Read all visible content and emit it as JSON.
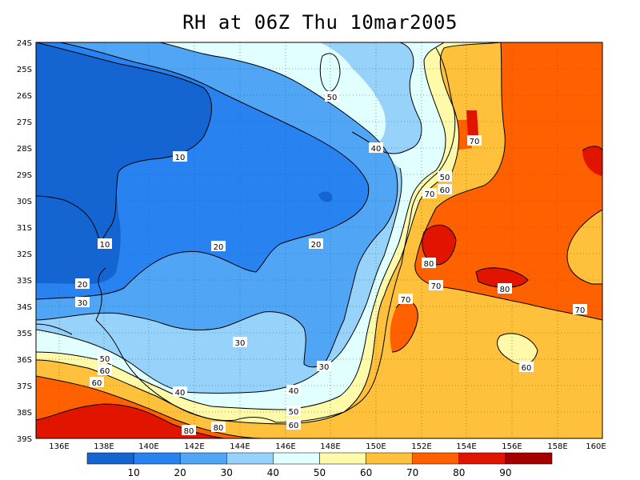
{
  "title": "RH at 06Z Thu 10mar2005",
  "y_ticks": [
    "24S",
    "25S",
    "26S",
    "27S",
    "28S",
    "29S",
    "30S",
    "31S",
    "32S",
    "33S",
    "34S",
    "35S",
    "36S",
    "37S",
    "38S",
    "39S"
  ],
  "x_ticks": [
    "136E",
    "138E",
    "140E",
    "142E",
    "144E",
    "146E",
    "148E",
    "150E",
    "152E",
    "154E",
    "156E",
    "158E",
    "160E"
  ],
  "contour_labels": [
    "10",
    "10",
    "10",
    "20",
    "20",
    "20",
    "20",
    "30",
    "30",
    "30",
    "40",
    "40",
    "40",
    "50",
    "50",
    "50",
    "50",
    "60",
    "60",
    "60",
    "60",
    "70",
    "70",
    "70",
    "70",
    "70",
    "80",
    "80",
    "80",
    "60"
  ],
  "colorbar": {
    "colors": [
      "#1464d2",
      "#2882f0",
      "#50a5f5",
      "#96d2fa",
      "#e1ffff",
      "#fffaaa",
      "#ffc03c",
      "#ff6000",
      "#e11400",
      "#a50000"
    ],
    "labels": [
      "10",
      "20",
      "30",
      "40",
      "50",
      "60",
      "70",
      "80",
      "90"
    ]
  }
}
